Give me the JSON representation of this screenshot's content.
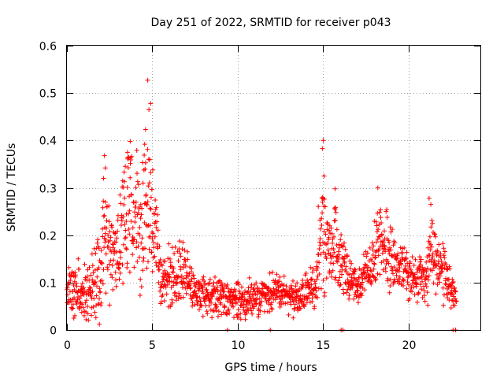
{
  "chart_data": {
    "type": "scatter",
    "title": "Day 251 of 2022, SRMTID for receiver p043",
    "xlabel": "GPS time / hours",
    "ylabel": "SRMTID / TECUs",
    "xlim": [
      0,
      24.2
    ],
    "ylim": [
      0,
      0.6
    ],
    "xticks": [
      0,
      5,
      10,
      15,
      20
    ],
    "yticks": [
      0,
      0.1,
      0.2,
      0.3,
      0.4,
      0.5,
      0.6
    ],
    "ytick_labels": [
      "0",
      "0.1",
      "0.2",
      "0.3",
      "0.4",
      "0.5",
      "0.6"
    ],
    "grid": true,
    "marker": "+",
    "series": [
      {
        "name": "SRMTID",
        "color": "#ff0000",
        "envelope": [
          {
            "t": 0.0,
            "base": 0.09,
            "spread": 0.03
          },
          {
            "t": 1.0,
            "base": 0.08,
            "spread": 0.05
          },
          {
            "t": 2.0,
            "base": 0.12,
            "spread": 0.07
          },
          {
            "t": 2.3,
            "base": 0.22,
            "spread": 0.12
          },
          {
            "t": 2.8,
            "base": 0.14,
            "spread": 0.07
          },
          {
            "t": 3.5,
            "base": 0.25,
            "spread": 0.12
          },
          {
            "t": 4.2,
            "base": 0.22,
            "spread": 0.1
          },
          {
            "t": 4.7,
            "base": 0.28,
            "spread": 0.14
          },
          {
            "t": 5.2,
            "base": 0.2,
            "spread": 0.08
          },
          {
            "t": 5.6,
            "base": 0.1,
            "spread": 0.04
          },
          {
            "t": 6.8,
            "base": 0.12,
            "spread": 0.06
          },
          {
            "t": 7.5,
            "base": 0.08,
            "spread": 0.03
          },
          {
            "t": 9.0,
            "base": 0.07,
            "spread": 0.03
          },
          {
            "t": 10.0,
            "base": 0.06,
            "spread": 0.03
          },
          {
            "t": 12.0,
            "base": 0.08,
            "spread": 0.03
          },
          {
            "t": 13.5,
            "base": 0.07,
            "spread": 0.03
          },
          {
            "t": 14.5,
            "base": 0.09,
            "spread": 0.03
          },
          {
            "t": 15.0,
            "base": 0.22,
            "spread": 0.12
          },
          {
            "t": 15.3,
            "base": 0.16,
            "spread": 0.06
          },
          {
            "t": 15.7,
            "base": 0.18,
            "spread": 0.06
          },
          {
            "t": 16.2,
            "base": 0.13,
            "spread": 0.04
          },
          {
            "t": 17.0,
            "base": 0.09,
            "spread": 0.03
          },
          {
            "t": 17.8,
            "base": 0.13,
            "spread": 0.04
          },
          {
            "t": 18.4,
            "base": 0.2,
            "spread": 0.08
          },
          {
            "t": 19.0,
            "base": 0.15,
            "spread": 0.05
          },
          {
            "t": 20.0,
            "base": 0.12,
            "spread": 0.04
          },
          {
            "t": 21.0,
            "base": 0.1,
            "spread": 0.04
          },
          {
            "t": 21.3,
            "base": 0.17,
            "spread": 0.08
          },
          {
            "t": 22.0,
            "base": 0.12,
            "spread": 0.05
          },
          {
            "t": 22.8,
            "base": 0.07,
            "spread": 0.02
          }
        ],
        "peaks": [
          {
            "x": 4.73,
            "y": 0.527
          },
          {
            "x": 4.9,
            "y": 0.478
          },
          {
            "x": 4.8,
            "y": 0.465
          },
          {
            "x": 4.6,
            "y": 0.423
          },
          {
            "x": 3.7,
            "y": 0.398
          },
          {
            "x": 4.55,
            "y": 0.392
          },
          {
            "x": 3.55,
            "y": 0.375
          },
          {
            "x": 2.2,
            "y": 0.368
          },
          {
            "x": 2.25,
            "y": 0.342
          },
          {
            "x": 2.15,
            "y": 0.32
          },
          {
            "x": 15.0,
            "y": 0.4
          },
          {
            "x": 14.95,
            "y": 0.383
          },
          {
            "x": 15.05,
            "y": 0.325
          },
          {
            "x": 15.7,
            "y": 0.298
          },
          {
            "x": 18.2,
            "y": 0.3
          },
          {
            "x": 21.2,
            "y": 0.278
          },
          {
            "x": 21.3,
            "y": 0.265
          },
          {
            "x": 1.9,
            "y": 0.012
          },
          {
            "x": 0.4,
            "y": 0.025
          },
          {
            "x": 16.05,
            "y": 0.0
          },
          {
            "x": 16.15,
            "y": 0.0
          },
          {
            "x": 9.4,
            "y": 0.0
          },
          {
            "x": 11.9,
            "y": 0.0
          },
          {
            "x": 22.6,
            "y": 0.0
          },
          {
            "x": 22.75,
            "y": 0.0
          }
        ]
      }
    ]
  }
}
